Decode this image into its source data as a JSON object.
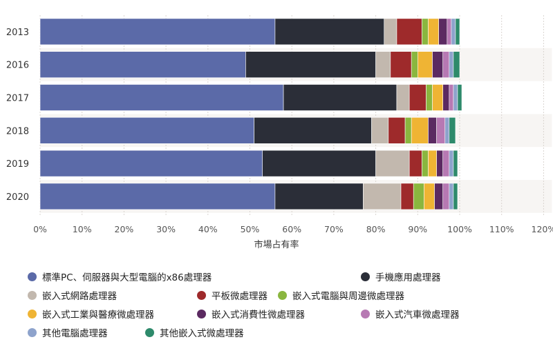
{
  "chart_data": {
    "type": "bar",
    "orientation": "horizontal",
    "stacked": true,
    "xlabel": "市場占有率",
    "ylabel": "",
    "xlim": [
      0,
      120
    ],
    "xticks": [
      "0%",
      "10%",
      "20%",
      "30%",
      "40%",
      "50%",
      "60%",
      "70%",
      "80%",
      "90%",
      "100%",
      "110%",
      "120%"
    ],
    "categories": [
      "2013",
      "2016",
      "2017",
      "2018",
      "2019",
      "2020"
    ],
    "grid": true,
    "legend_position": "bottom",
    "series": [
      {
        "name": "標準PC、伺服器與大型電腦的x86處理器",
        "color": "#5b6aa8",
        "values": [
          56,
          49,
          58,
          51,
          53,
          56
        ]
      },
      {
        "name": "手機應用處理器",
        "color": "#2b2e38",
        "values": [
          26,
          31,
          27,
          28,
          27,
          21
        ]
      },
      {
        "name": "嵌入式網路處理器",
        "color": "#c2b8ae",
        "values": [
          3,
          3.5,
          3,
          4,
          8,
          9
        ]
      },
      {
        "name": "平板微處理器",
        "color": "#9e2a2b",
        "values": [
          6,
          5,
          4,
          4,
          3,
          3
        ]
      },
      {
        "name": "嵌入式電腦與周邊微處理器",
        "color": "#8ab63f",
        "values": [
          1.5,
          1.5,
          1.5,
          1.5,
          1.5,
          2.5
        ]
      },
      {
        "name": "嵌入式工業與醫療微處理器",
        "color": "#efb434",
        "values": [
          2.5,
          3.5,
          2.5,
          4,
          2,
          2.5
        ]
      },
      {
        "name": "嵌入式消費性微處理器",
        "color": "#5b2a61",
        "values": [
          2,
          2.5,
          1.5,
          2,
          1.5,
          2
        ]
      },
      {
        "name": "嵌入式汽車微處理器",
        "color": "#b779b3",
        "values": [
          1,
          1.5,
          1,
          2,
          1.5,
          1.5
        ]
      },
      {
        "name": "其他電腦處理器",
        "color": "#8ea3cc",
        "values": [
          1,
          1,
          1,
          1,
          1,
          1
        ]
      },
      {
        "name": "其他嵌入式微處理器",
        "color": "#2e8a6b",
        "values": [
          1,
          1.5,
          1,
          1.5,
          1,
          1
        ]
      }
    ]
  }
}
